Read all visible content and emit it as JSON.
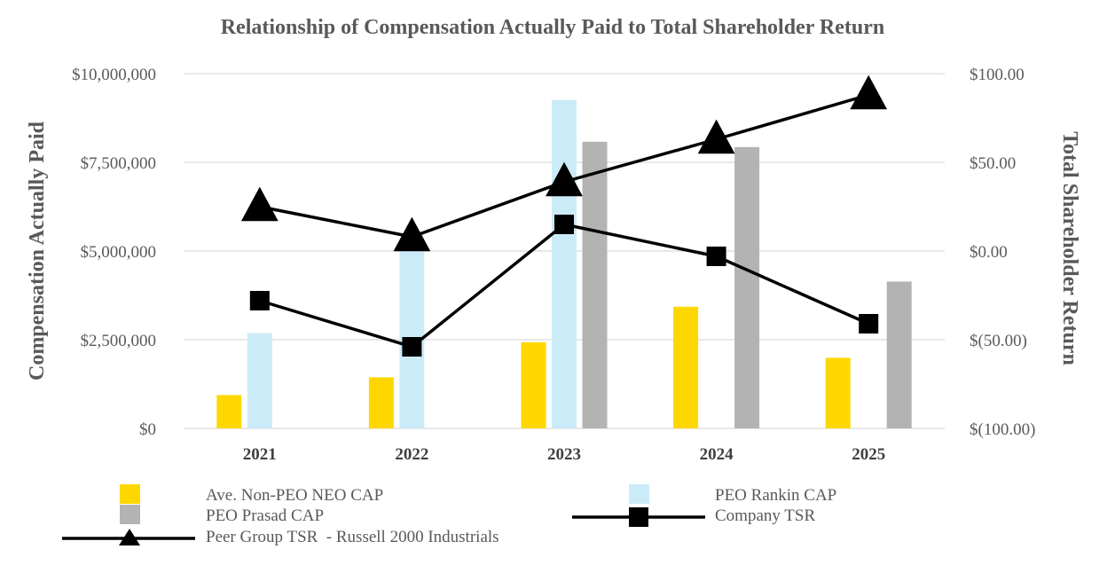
{
  "chart_data": {
    "type": "bar",
    "title": "Relationship of Compensation Actually Paid to Total Shareholder Return",
    "ylabel_left": "Compensation Actually Paid",
    "ylabel_right": "Total Shareholder Return",
    "categories": [
      "2021",
      "2022",
      "2023",
      "2024",
      "2025"
    ],
    "y_left_range": [
      0,
      10000000
    ],
    "y_left_ticks": [
      "$0",
      "$2,500,000",
      "$5,000,000",
      "$7,500,000",
      "$10,000,000"
    ],
    "y_right_range": [
      -100,
      100
    ],
    "y_right_ticks": [
      "$(100.00)",
      "$(50.00)",
      "$0.00",
      "$50.00",
      "$100.00"
    ],
    "grid": true,
    "legend_position": "bottom",
    "bar_series": [
      {
        "name": "Ave. Non-PEO NEO CAP",
        "color": "#FFD700",
        "values": [
          940000,
          1440000,
          2430000,
          3430000,
          1990000
        ]
      },
      {
        "name": "PEO Rankin CAP",
        "color": "#CCEBF8",
        "values": [
          2690000,
          5020000,
          9260000,
          null,
          null
        ]
      },
      {
        "name": "PEO Prasad CAP",
        "color": "#B3B3B3",
        "values": [
          null,
          null,
          8080000,
          7930000,
          4140000
        ]
      }
    ],
    "line_series": [
      {
        "name": "Company TSR",
        "marker": "square",
        "color": "#000000",
        "values": [
          -28,
          -54,
          15,
          -3,
          -41
        ]
      },
      {
        "name": "Peer Group TSR  - Russell 2000 Industrials",
        "marker": "triangle",
        "color": "#000000",
        "values": [
          25,
          8,
          39,
          63,
          88
        ]
      }
    ]
  }
}
